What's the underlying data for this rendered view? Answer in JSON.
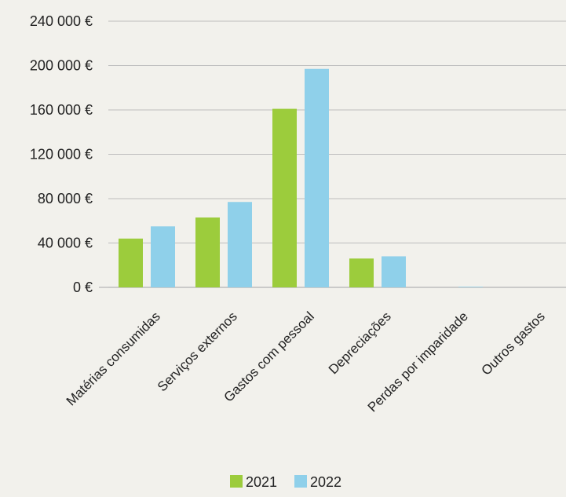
{
  "chart_data": {
    "type": "bar",
    "categories": [
      "Matérias consumidas",
      "Serviços externos",
      "Gastos com pessoal",
      "Depreciações",
      "Perdas por imparidade",
      "Outros gastos"
    ],
    "series": [
      {
        "name": "2021",
        "values": [
          44000,
          63000,
          161000,
          26000,
          0,
          0
        ]
      },
      {
        "name": "2022",
        "values": [
          55000,
          77000,
          197000,
          28000,
          500,
          0
        ]
      }
    ],
    "y_ticks": [
      0,
      40000,
      80000,
      120000,
      160000,
      200000,
      240000
    ],
    "y_tick_labels": [
      "0 €",
      "40 000 €",
      "80 000 €",
      "120 000 €",
      "160 000 €",
      "200 000 €",
      "240 000 €"
    ],
    "ylim": [
      0,
      240000
    ],
    "grid": true,
    "legend_position": "bottom",
    "colors": {
      "2021": "#9ccc3c",
      "2022": "#8fd0ea",
      "grid": "#bdbdbd"
    }
  }
}
